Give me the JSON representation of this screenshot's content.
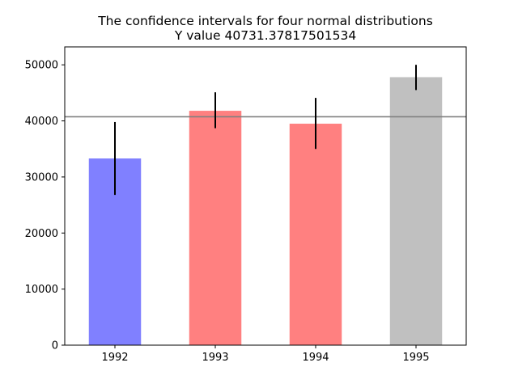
{
  "chart_data": {
    "type": "bar",
    "title": "The confidence intervals for four normal distributions",
    "subtitle": "Y value 40731.37817501534",
    "categories": [
      "1992",
      "1993",
      "1994",
      "1995"
    ],
    "values": [
      33300,
      41800,
      39500,
      47800
    ],
    "error_low": [
      26800,
      38700,
      35000,
      45500
    ],
    "error_high": [
      39800,
      45100,
      44100,
      50000
    ],
    "reference_y": 40731.37817501534,
    "reference_color": "#808080",
    "ylim": [
      0,
      53200
    ],
    "yticks": [
      0,
      10000,
      20000,
      30000,
      40000,
      50000
    ],
    "ytick_labels": [
      "0",
      "10000",
      "20000",
      "30000",
      "40000",
      "50000"
    ],
    "bar_colors": [
      "#8080ff",
      "#ff8080",
      "#ff8080",
      "#c0c0c0"
    ],
    "error_color": "#000000",
    "xlabel": "",
    "ylabel": "",
    "grid": false,
    "legend": false
  }
}
